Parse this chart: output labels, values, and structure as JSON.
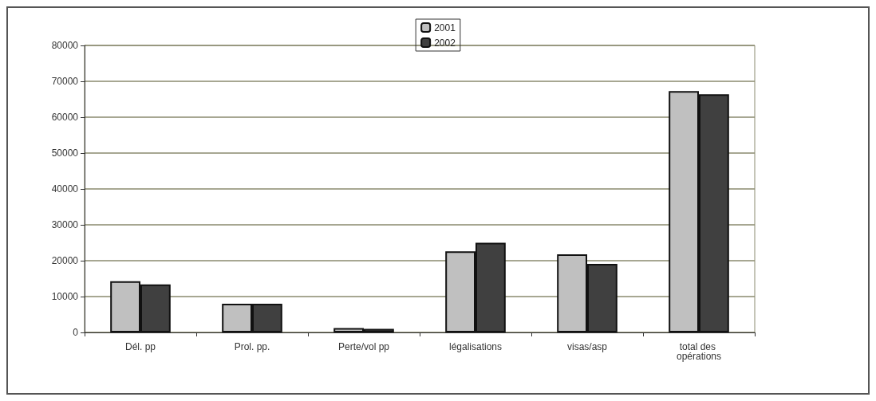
{
  "chart_data": {
    "type": "bar",
    "categories": [
      "Dél. pp",
      "Prol. pp.",
      "Perte/vol pp",
      "légalisations",
      "visas/asp",
      "total des opérations"
    ],
    "series": [
      {
        "name": "2001",
        "color": "#c0c0c0",
        "values": [
          14300,
          8000,
          1200,
          22600,
          21800,
          67300
        ]
      },
      {
        "name": "2002",
        "color": "#404040",
        "values": [
          13400,
          8000,
          1000,
          25000,
          19100,
          66400
        ]
      }
    ],
    "ylim": [
      0,
      80000
    ],
    "yticks": [
      0,
      10000,
      20000,
      30000,
      40000,
      50000,
      60000,
      70000,
      80000
    ],
    "grid": "y",
    "legend": "top"
  }
}
